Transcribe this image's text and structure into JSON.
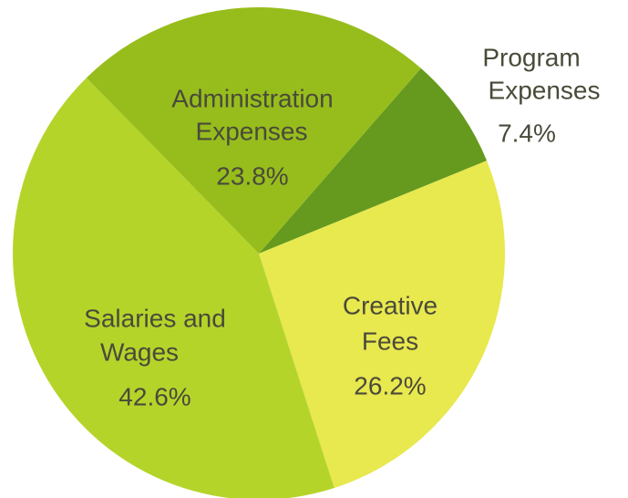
{
  "chart_data": {
    "type": "pie",
    "categories": [
      [
        "Program",
        "Expenses"
      ],
      [
        "Creative",
        "Fees"
      ],
      [
        "Salaries and",
        "Wages"
      ],
      [
        "Administration",
        "Expenses"
      ]
    ],
    "values": [
      7.4,
      26.2,
      42.6,
      23.8
    ],
    "value_labels": [
      "7.4%",
      "26.2%",
      "42.6%",
      "23.8%"
    ],
    "colors": [
      "#659a1f",
      "#e8e84f",
      "#b5d42a",
      "#97bd1c"
    ]
  }
}
